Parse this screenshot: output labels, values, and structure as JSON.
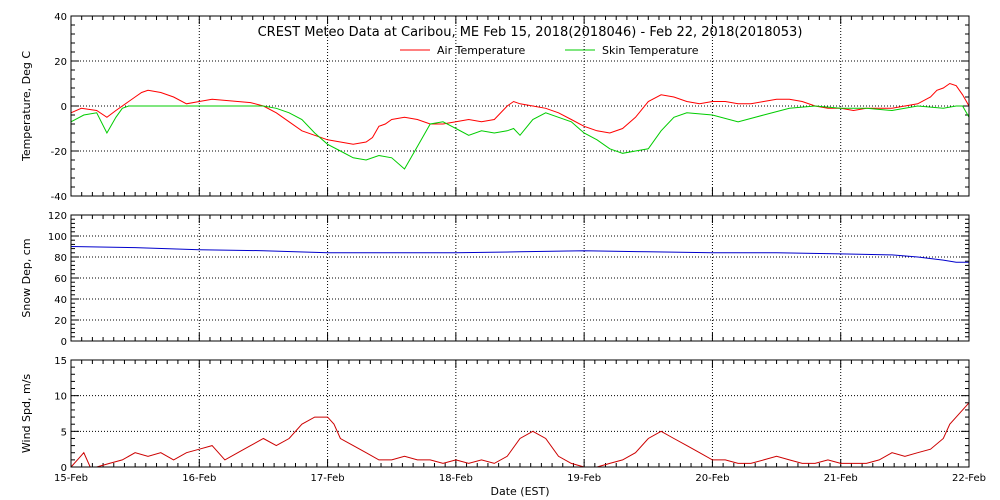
{
  "chart_data": [
    {
      "type": "line",
      "title": "CREST Meteo Data at Caribou, ME    Feb 15, 2018(2018046) - Feb 22, 2018(2018053)",
      "xlabel": "",
      "ylabel": "Temperature, Deg C",
      "xlim": [
        0,
        7
      ],
      "ylim": [
        -40,
        40
      ],
      "yticks": [
        -40,
        -20,
        0,
        20,
        40
      ],
      "legend_position": "top-center",
      "grid": true,
      "series": [
        {
          "name": "Air Temperature",
          "color": "#ff0000",
          "x": [
            0,
            0.08,
            0.2,
            0.28,
            0.35,
            0.45,
            0.5,
            0.55,
            0.6,
            0.7,
            0.8,
            0.9,
            1.0,
            1.1,
            1.2,
            1.3,
            1.4,
            1.5,
            1.6,
            1.7,
            1.8,
            1.9,
            2.0,
            2.1,
            2.2,
            2.3,
            2.35,
            2.4,
            2.45,
            2.5,
            2.6,
            2.7,
            2.8,
            2.9,
            3.0,
            3.1,
            3.2,
            3.3,
            3.4,
            3.45,
            3.5,
            3.6,
            3.7,
            3.8,
            3.9,
            4.0,
            4.1,
            4.2,
            4.3,
            4.4,
            4.5,
            4.6,
            4.7,
            4.8,
            4.9,
            5.0,
            5.1,
            5.2,
            5.3,
            5.4,
            5.5,
            5.6,
            5.7,
            5.8,
            5.9,
            6.0,
            6.1,
            6.2,
            6.3,
            6.4,
            6.5,
            6.6,
            6.7,
            6.75,
            6.8,
            6.85,
            6.9,
            6.95,
            7.0
          ],
          "y": [
            -3,
            -1,
            -2,
            -5,
            -2,
            2,
            4,
            6,
            7,
            6,
            4,
            1,
            2,
            3,
            2.5,
            2,
            1.5,
            0,
            -3,
            -7,
            -11,
            -13,
            -15,
            -16,
            -17,
            -16,
            -14,
            -9,
            -8,
            -6,
            -5,
            -6,
            -8,
            -8,
            -7,
            -6,
            -7,
            -6,
            0,
            2,
            1,
            0,
            -1,
            -3,
            -6,
            -9,
            -11,
            -12,
            -10,
            -5,
            2,
            5,
            4,
            2,
            1,
            2,
            2,
            1,
            1,
            2,
            3,
            3,
            2,
            0,
            -1,
            -1,
            -2,
            -1,
            -1,
            -1,
            0,
            1,
            4,
            7,
            8,
            10,
            9,
            5,
            0
          ]
        },
        {
          "name": "Skin Temperature",
          "color": "#00cc00",
          "x": [
            0,
            0.1,
            0.2,
            0.28,
            0.35,
            0.4,
            0.45,
            0.5,
            0.6,
            0.7,
            0.8,
            0.9,
            1.0,
            1.2,
            1.4,
            1.5,
            1.6,
            1.7,
            1.8,
            1.9,
            2.0,
            2.1,
            2.2,
            2.3,
            2.4,
            2.5,
            2.6,
            2.7,
            2.8,
            2.9,
            3.0,
            3.1,
            3.2,
            3.3,
            3.4,
            3.45,
            3.5,
            3.6,
            3.7,
            3.8,
            3.9,
            4.0,
            4.1,
            4.2,
            4.3,
            4.4,
            4.5,
            4.6,
            4.7,
            4.8,
            5.0,
            5.2,
            5.4,
            5.6,
            5.8,
            6.0,
            6.2,
            6.4,
            6.6,
            6.8,
            6.9,
            6.95,
            7.0
          ],
          "y": [
            -7,
            -4,
            -3,
            -12,
            -5,
            -1,
            0,
            0,
            0,
            0,
            0,
            0,
            0,
            0,
            0,
            0,
            -1,
            -3,
            -6,
            -12,
            -17,
            -20,
            -23,
            -24,
            -22,
            -23,
            -28,
            -18,
            -8,
            -7,
            -10,
            -13,
            -11,
            -12,
            -11,
            -10,
            -13,
            -6,
            -3,
            -5,
            -7,
            -12,
            -15,
            -19,
            -21,
            -20,
            -19,
            -11,
            -5,
            -3,
            -4,
            -7,
            -4,
            -1,
            0,
            -1,
            -1,
            -2,
            0,
            -1,
            0,
            0,
            -5
          ]
        }
      ]
    },
    {
      "type": "line",
      "xlabel": "",
      "ylabel": "Snow Dep, cm",
      "xlim": [
        0,
        7
      ],
      "ylim": [
        0,
        120
      ],
      "yticks": [
        0,
        20,
        40,
        60,
        80,
        100,
        120
      ],
      "grid": true,
      "series": [
        {
          "color": "#0000cc",
          "x": [
            0,
            0.5,
            1,
            1.5,
            2,
            2.5,
            3,
            3.5,
            4,
            4.5,
            5,
            5.5,
            6,
            6.4,
            6.6,
            6.8,
            6.9,
            7.0
          ],
          "y": [
            90,
            89,
            87,
            86,
            84,
            84,
            84,
            85,
            86,
            85,
            84,
            84,
            83,
            82,
            80,
            77,
            75,
            75
          ]
        }
      ]
    },
    {
      "type": "line",
      "xlabel": "Date (EST)",
      "ylabel": "Wind Spd, m/s",
      "xlim": [
        0,
        7
      ],
      "ylim": [
        0,
        15
      ],
      "yticks": [
        0,
        5,
        10,
        15
      ],
      "xticks": [
        "15-Feb",
        "16-Feb",
        "17-Feb",
        "18-Feb",
        "19-Feb",
        "20-Feb",
        "21-Feb",
        "22-Feb"
      ],
      "grid": true,
      "series": [
        {
          "color": "#cc0000",
          "x": [
            0,
            0.05,
            0.1,
            0.15,
            0.2,
            0.3,
            0.4,
            0.5,
            0.6,
            0.7,
            0.8,
            0.9,
            1.0,
            1.1,
            1.2,
            1.3,
            1.4,
            1.5,
            1.6,
            1.7,
            1.8,
            1.9,
            2.0,
            2.05,
            2.1,
            2.2,
            2.3,
            2.4,
            2.5,
            2.6,
            2.7,
            2.8,
            2.9,
            3.0,
            3.1,
            3.2,
            3.3,
            3.4,
            3.5,
            3.6,
            3.7,
            3.8,
            3.9,
            4.0,
            4.1,
            4.2,
            4.3,
            4.4,
            4.5,
            4.6,
            4.7,
            4.8,
            4.9,
            5.0,
            5.1,
            5.2,
            5.3,
            5.4,
            5.5,
            5.6,
            5.7,
            5.8,
            5.9,
            6.0,
            6.1,
            6.2,
            6.3,
            6.4,
            6.5,
            6.6,
            6.7,
            6.8,
            6.85,
            6.9,
            6.95,
            7.0
          ],
          "y": [
            0,
            1,
            2,
            0,
            0,
            0.5,
            1,
            2,
            1.5,
            2,
            1,
            2,
            2.5,
            3,
            1,
            2,
            3,
            4,
            3,
            4,
            6,
            7,
            7,
            6,
            4,
            3,
            2,
            1,
            1,
            1.5,
            1,
            1,
            0.5,
            1,
            0.5,
            1,
            0.5,
            1.5,
            4,
            5,
            4,
            1.5,
            0.5,
            0,
            0,
            0.5,
            1,
            2,
            4,
            5,
            4,
            3,
            2,
            1,
            1,
            0.5,
            0.5,
            1,
            1.5,
            1,
            0.5,
            0.5,
            1,
            0.5,
            0.5,
            0.5,
            1,
            2,
            1.5,
            2,
            2.5,
            4,
            6,
            7,
            8,
            9
          ]
        }
      ]
    }
  ]
}
